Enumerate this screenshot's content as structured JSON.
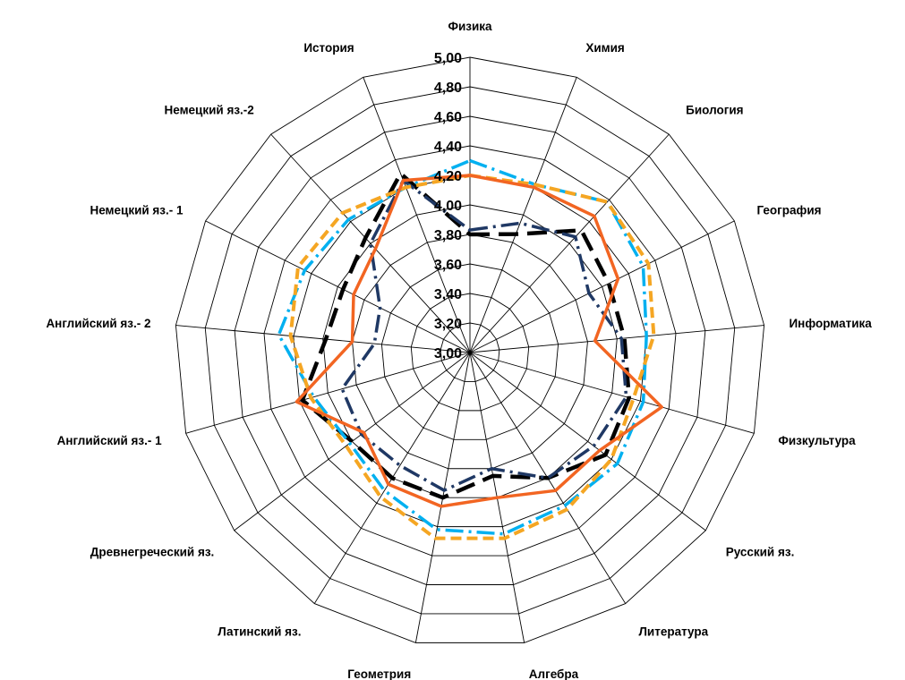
{
  "chart_data": {
    "type": "radar",
    "title": "",
    "rlim": [
      3.0,
      5.0
    ],
    "ticks": [
      "3,00",
      "3,20",
      "3,40",
      "3,60",
      "3,80",
      "4,00",
      "4,20",
      "4,40",
      "4,60",
      "4,80",
      "5,00"
    ],
    "tick_values": [
      3.0,
      3.2,
      3.4,
      3.6,
      3.8,
      4.0,
      4.2,
      4.4,
      4.6,
      4.8,
      5.0
    ],
    "categories": [
      "Физика",
      "Химия",
      "Биология",
      "География",
      "Информатика",
      "Физкультура",
      "Русский яз.",
      "Литература",
      "Алгебра",
      "Геометрия",
      "Латинский яз.",
      "Древнегреческий яз.",
      "Английский яз.- 1",
      "Английский яз.- 2",
      "Немецкий яз.- 1",
      "Немецкий яз.-2",
      "История"
    ],
    "grid": true,
    "legend": "none",
    "series": [
      {
        "color": "#000000",
        "style": "long-dash",
        "values": [
          3.8,
          3.86,
          4.12,
          4.05,
          4.05,
          4.12,
          4.15,
          4.0,
          3.85,
          4.0,
          4.0,
          4.0,
          4.18,
          3.98,
          3.96,
          4.05,
          4.3
        ]
      },
      {
        "color": "#1f3864",
        "style": "dash-dot",
        "values": [
          3.83,
          3.94,
          4.06,
          3.9,
          4.03,
          4.1,
          4.05,
          4.0,
          3.8,
          3.95,
          3.9,
          3.92,
          3.9,
          3.65,
          3.68,
          4.0,
          4.25
        ]
      },
      {
        "color": "#00b0f0",
        "style": "dash-dot",
        "values": [
          4.3,
          4.22,
          4.38,
          4.31,
          4.2,
          4.22,
          4.25,
          4.22,
          4.25,
          4.22,
          4.1,
          4.02,
          4.1,
          4.3,
          4.25,
          4.22,
          4.2
        ]
      },
      {
        "color": "#f5a623",
        "style": "dash",
        "values": [
          4.2,
          4.22,
          4.38,
          4.35,
          4.25,
          4.15,
          4.2,
          4.25,
          4.28,
          4.28,
          4.15,
          4.05,
          4.12,
          4.22,
          4.3,
          4.28,
          4.2
        ]
      },
      {
        "color": "#f26522",
        "style": "solid",
        "values": [
          4.2,
          4.2,
          4.25,
          4.12,
          3.85,
          4.35,
          4.1,
          4.1,
          4.0,
          4.06,
          4.05,
          3.9,
          4.22,
          3.8,
          3.88,
          3.95,
          4.25
        ]
      }
    ]
  }
}
